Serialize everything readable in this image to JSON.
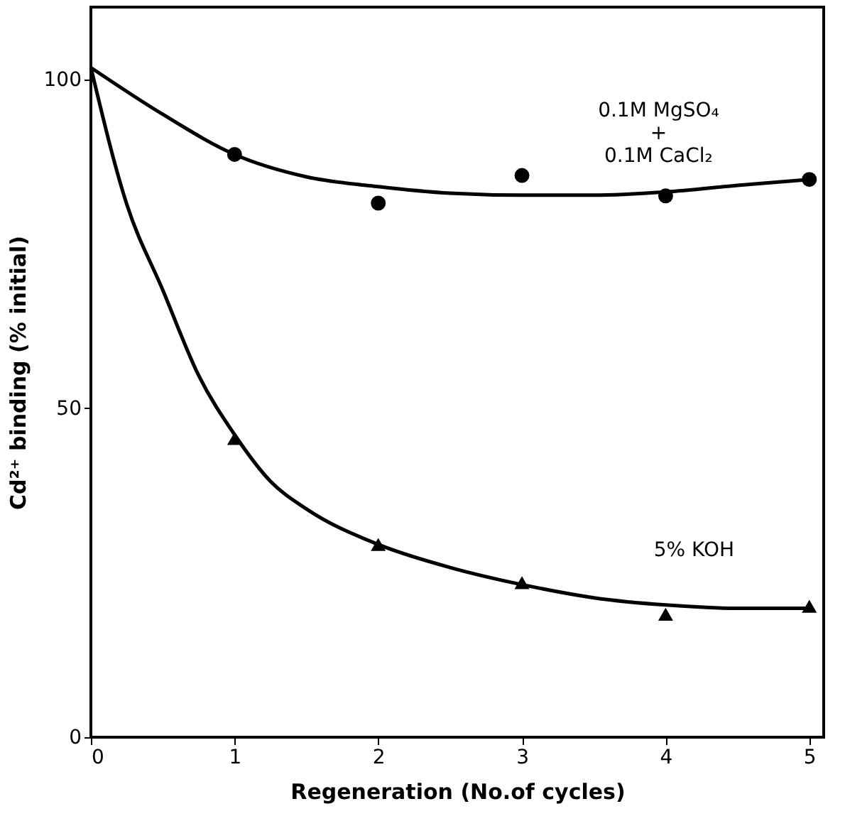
{
  "chart_data": {
    "type": "scatter",
    "xlabel": "Regeneration (No.of cycles)",
    "ylabel": "Cd²⁺ binding (% initial)",
    "xlim": [
      0,
      5.1
    ],
    "ylim": [
      0,
      111
    ],
    "xticks": [
      0,
      1,
      2,
      3,
      4,
      5
    ],
    "yticks": [
      0,
      50,
      100
    ],
    "grid": false,
    "series": [
      {
        "name": "0.1M MgSO₄\n+\n0.1M CaCl₂",
        "marker": "circle",
        "color": "#000000",
        "x": [
          1,
          2,
          3,
          4,
          5
        ],
        "values": [
          88.6,
          81.2,
          85.4,
          82.3,
          84.8
        ]
      },
      {
        "name": "5% KOH",
        "marker": "triangle",
        "color": "#000000",
        "x": [
          1,
          2,
          3,
          4,
          5
        ],
        "values": [
          45.4,
          29.3,
          23.5,
          18.7,
          19.9
        ]
      },
      {
        "type": "line",
        "marker": "none",
        "line_style": "solid",
        "color": "#000000",
        "x": [
          0,
          0.5,
          1,
          1.5,
          2,
          2.5,
          3,
          3.5,
          4,
          4.5,
          5
        ],
        "values": [
          101.8,
          94.7,
          88.6,
          85.2,
          83.7,
          82.7,
          82.4,
          82.4,
          82.9,
          83.9,
          84.8
        ]
      },
      {
        "type": "line",
        "marker": "none",
        "line_style": "solid",
        "color": "#000000",
        "x": [
          0,
          0.25,
          0.5,
          0.75,
          1,
          1.25,
          1.5,
          2,
          2.5,
          3,
          3.5,
          4,
          4.5,
          5
        ],
        "values": [
          101.8,
          81,
          68,
          55,
          46,
          38.9,
          34.7,
          29.3,
          25.8,
          23.2,
          21.2,
          20.1,
          19.6,
          19.6
        ]
      }
    ]
  }
}
